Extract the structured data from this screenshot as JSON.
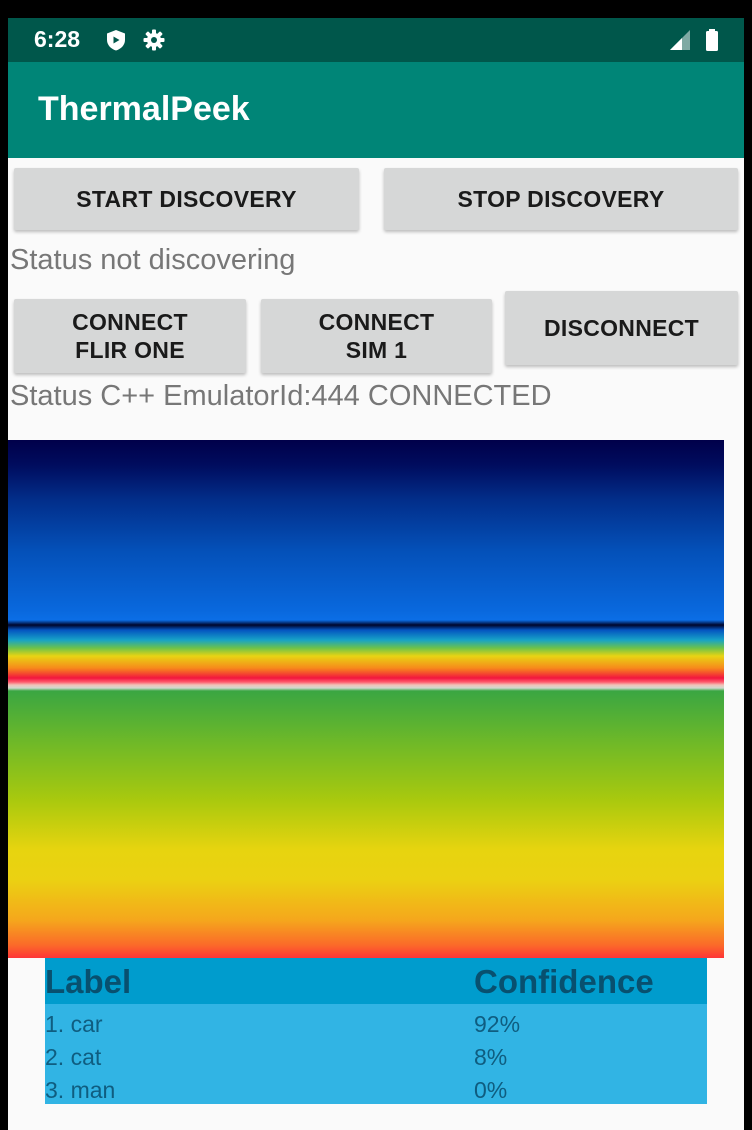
{
  "status_bar": {
    "time": "6:28",
    "left_icons": [
      "shield-icon",
      "gear-icon"
    ],
    "right_icons": [
      "signal-icon",
      "battery-icon"
    ]
  },
  "app_bar": {
    "title": "ThermalPeek"
  },
  "discovery": {
    "start_label": "START DISCOVERY",
    "stop_label": "STOP DISCOVERY",
    "status": "Status not discovering"
  },
  "connection": {
    "connect_flir_line1": "CONNECT",
    "connect_flir_line2": "FLIR ONE",
    "connect_sim_line1": "CONNECT",
    "connect_sim_line2": "SIM 1",
    "disconnect_label": "DISCONNECT",
    "status": "Status C++ EmulatorId:444 CONNECTED"
  },
  "results": {
    "headers": {
      "label": "Label",
      "confidence": "Confidence"
    },
    "rows": [
      {
        "label": "1. car",
        "confidence": "92%"
      },
      {
        "label": "2. cat",
        "confidence": "8%"
      },
      {
        "label": "3. man",
        "confidence": "0%"
      }
    ]
  },
  "colors": {
    "status_bar": "#00574b",
    "app_bar": "#008577",
    "button": "#d6d7d7",
    "table_header": "#009ccd",
    "table_body": "#31b4e4"
  }
}
